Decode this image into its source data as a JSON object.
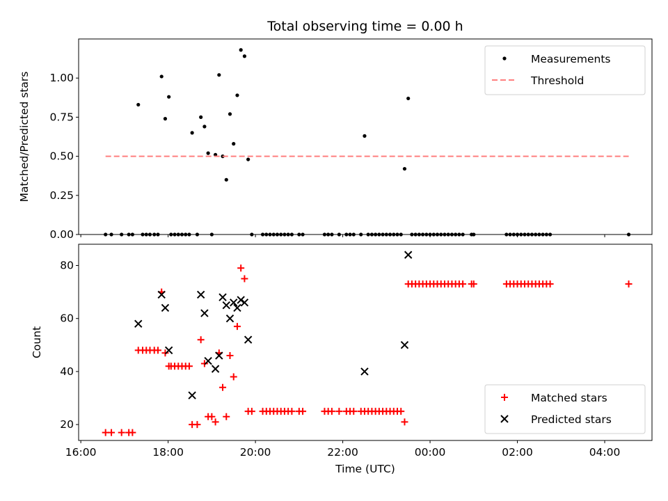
{
  "chart_data": [
    {
      "type": "scatter",
      "title": "Total observing time = 0.00 h",
      "xlabel": "",
      "ylabel": "Matched/Predicted stars",
      "x_unit": "hours (UTC, relative to 16:00 on day 0)",
      "xlim": [
        "15:57",
        "05:05"
      ],
      "ylim": [
        0,
        1.25
      ],
      "yticks": [
        "0.00",
        "0.25",
        "0.50",
        "0.75",
        "1.00"
      ],
      "xticks": [
        "16:00",
        "18:00",
        "20:00",
        "22:00",
        "00:00",
        "02:00",
        "04:00"
      ],
      "legend_position": "upper right",
      "legend": [
        "Measurements",
        "Threshold"
      ],
      "series": [
        {
          "name": "Measurements",
          "marker": "dot",
          "color": "#000000",
          "points": [
            [
              "16:34",
              0
            ],
            [
              "16:42",
              0
            ],
            [
              "16:56",
              0
            ],
            [
              "17:06",
              0
            ],
            [
              "17:11",
              0
            ],
            [
              "17:19",
              0.83
            ],
            [
              "17:25",
              0
            ],
            [
              "17:30",
              0
            ],
            [
              "17:35",
              0
            ],
            [
              "17:41",
              0
            ],
            [
              "17:46",
              0
            ],
            [
              "17:51",
              1.01
            ],
            [
              "17:56",
              0.74
            ],
            [
              "18:01",
              0.88
            ],
            [
              "18:04",
              0
            ],
            [
              "18:09",
              0
            ],
            [
              "18:14",
              0
            ],
            [
              "18:19",
              0
            ],
            [
              "18:24",
              0
            ],
            [
              "18:29",
              0
            ],
            [
              "18:33",
              0.65
            ],
            [
              "18:40",
              0
            ],
            [
              "18:45",
              0.75
            ],
            [
              "18:50",
              0.69
            ],
            [
              "18:55",
              0.52
            ],
            [
              "19:00",
              0
            ],
            [
              "19:05",
              0.51
            ],
            [
              "19:10",
              1.02
            ],
            [
              "19:15",
              0.5
            ],
            [
              "19:20",
              0.35
            ],
            [
              "19:25",
              0.77
            ],
            [
              "19:30",
              0.58
            ],
            [
              "19:35",
              0.89
            ],
            [
              "19:40",
              1.18
            ],
            [
              "19:45",
              1.14
            ],
            [
              "19:50",
              0.48
            ],
            [
              "19:55",
              0
            ],
            [
              "20:10",
              0
            ],
            [
              "20:15",
              0
            ],
            [
              "20:20",
              0
            ],
            [
              "20:25",
              0
            ],
            [
              "20:30",
              0
            ],
            [
              "20:35",
              0
            ],
            [
              "20:40",
              0
            ],
            [
              "20:45",
              0
            ],
            [
              "20:50",
              0
            ],
            [
              "21:00",
              0
            ],
            [
              "21:05",
              0
            ],
            [
              "21:35",
              0
            ],
            [
              "21:40",
              0
            ],
            [
              "21:45",
              0
            ],
            [
              "21:55",
              0
            ],
            [
              "22:05",
              0
            ],
            [
              "22:10",
              0
            ],
            [
              "22:15",
              0
            ],
            [
              "22:25",
              0
            ],
            [
              "22:30",
              0.63
            ],
            [
              "22:35",
              0
            ],
            [
              "22:40",
              0
            ],
            [
              "22:45",
              0
            ],
            [
              "22:50",
              0
            ],
            [
              "22:55",
              0
            ],
            [
              "23:00",
              0
            ],
            [
              "23:05",
              0
            ],
            [
              "23:10",
              0
            ],
            [
              "23:15",
              0
            ],
            [
              "23:20",
              0
            ],
            [
              "23:25",
              0.42
            ],
            [
              "23:30",
              0.87
            ],
            [
              "23:35",
              0
            ],
            [
              "23:40",
              0
            ],
            [
              "23:45",
              0
            ],
            [
              "23:50",
              0
            ],
            [
              "23:55",
              0
            ],
            [
              "00:00",
              0
            ],
            [
              "00:05",
              0
            ],
            [
              "00:10",
              0
            ],
            [
              "00:15",
              0
            ],
            [
              "00:20",
              0
            ],
            [
              "00:25",
              0
            ],
            [
              "00:30",
              0
            ],
            [
              "00:35",
              0
            ],
            [
              "00:40",
              0
            ],
            [
              "00:45",
              0
            ],
            [
              "00:57",
              0
            ],
            [
              "01:00",
              0
            ],
            [
              "01:45",
              0
            ],
            [
              "01:50",
              0
            ],
            [
              "01:55",
              0
            ],
            [
              "02:00",
              0
            ],
            [
              "02:05",
              0
            ],
            [
              "02:10",
              0
            ],
            [
              "02:15",
              0
            ],
            [
              "02:20",
              0
            ],
            [
              "02:25",
              0
            ],
            [
              "02:30",
              0
            ],
            [
              "02:35",
              0
            ],
            [
              "02:40",
              0
            ],
            [
              "02:45",
              0
            ],
            [
              "04:33",
              0
            ]
          ]
        },
        {
          "name": "Threshold",
          "style": "dashed",
          "color": "#ff7f7f",
          "points": [
            [
              "16:34",
              0.5
            ],
            [
              "04:33",
              0.5
            ]
          ]
        }
      ]
    },
    {
      "type": "scatter",
      "title": "",
      "xlabel": "Time (UTC)",
      "ylabel": "Count",
      "x_unit": "hours (UTC, relative to 16:00 on day 0)",
      "xlim": [
        "15:57",
        "05:05"
      ],
      "ylim": [
        14,
        88
      ],
      "yticks": [
        "20",
        "40",
        "60",
        "80"
      ],
      "xticks": [
        "16:00",
        "18:00",
        "20:00",
        "22:00",
        "00:00",
        "02:00",
        "04:00"
      ],
      "legend_position": "lower right",
      "legend": [
        "Matched stars",
        "Predicted stars"
      ],
      "series": [
        {
          "name": "Matched stars",
          "marker": "plus",
          "color": "#ff0000",
          "points": [
            [
              "16:34",
              17
            ],
            [
              "16:42",
              17
            ],
            [
              "16:56",
              17
            ],
            [
              "17:06",
              17
            ],
            [
              "17:11",
              17
            ],
            [
              "17:19",
              48
            ],
            [
              "17:25",
              48
            ],
            [
              "17:30",
              48
            ],
            [
              "17:35",
              48
            ],
            [
              "17:41",
              48
            ],
            [
              "17:46",
              48
            ],
            [
              "17:51",
              70
            ],
            [
              "17:56",
              47
            ],
            [
              "18:01",
              42
            ],
            [
              "18:04",
              42
            ],
            [
              "18:09",
              42
            ],
            [
              "18:14",
              42
            ],
            [
              "18:19",
              42
            ],
            [
              "18:24",
              42
            ],
            [
              "18:29",
              42
            ],
            [
              "18:33",
              20
            ],
            [
              "18:40",
              20
            ],
            [
              "18:45",
              52
            ],
            [
              "18:50",
              43
            ],
            [
              "18:55",
              23
            ],
            [
              "19:00",
              23
            ],
            [
              "19:05",
              21
            ],
            [
              "19:10",
              47
            ],
            [
              "19:15",
              34
            ],
            [
              "19:20",
              23
            ],
            [
              "19:25",
              46
            ],
            [
              "19:30",
              38
            ],
            [
              "19:35",
              57
            ],
            [
              "19:40",
              79
            ],
            [
              "19:45",
              75
            ],
            [
              "19:50",
              25
            ],
            [
              "19:55",
              25
            ],
            [
              "20:10",
              25
            ],
            [
              "20:15",
              25
            ],
            [
              "20:20",
              25
            ],
            [
              "20:25",
              25
            ],
            [
              "20:30",
              25
            ],
            [
              "20:35",
              25
            ],
            [
              "20:40",
              25
            ],
            [
              "20:45",
              25
            ],
            [
              "20:50",
              25
            ],
            [
              "21:00",
              25
            ],
            [
              "21:05",
              25
            ],
            [
              "21:35",
              25
            ],
            [
              "21:40",
              25
            ],
            [
              "21:45",
              25
            ],
            [
              "21:55",
              25
            ],
            [
              "22:05",
              25
            ],
            [
              "22:10",
              25
            ],
            [
              "22:15",
              25
            ],
            [
              "22:25",
              25
            ],
            [
              "22:30",
              25
            ],
            [
              "22:35",
              25
            ],
            [
              "22:40",
              25
            ],
            [
              "22:45",
              25
            ],
            [
              "22:50",
              25
            ],
            [
              "22:55",
              25
            ],
            [
              "23:00",
              25
            ],
            [
              "23:05",
              25
            ],
            [
              "23:10",
              25
            ],
            [
              "23:15",
              25
            ],
            [
              "23:20",
              25
            ],
            [
              "23:25",
              21
            ],
            [
              "23:30",
              73
            ],
            [
              "23:35",
              73
            ],
            [
              "23:40",
              73
            ],
            [
              "23:45",
              73
            ],
            [
              "23:50",
              73
            ],
            [
              "23:55",
              73
            ],
            [
              "00:00",
              73
            ],
            [
              "00:05",
              73
            ],
            [
              "00:10",
              73
            ],
            [
              "00:15",
              73
            ],
            [
              "00:20",
              73
            ],
            [
              "00:25",
              73
            ],
            [
              "00:30",
              73
            ],
            [
              "00:35",
              73
            ],
            [
              "00:40",
              73
            ],
            [
              "00:45",
              73
            ],
            [
              "00:57",
              73
            ],
            [
              "01:00",
              73
            ],
            [
              "01:45",
              73
            ],
            [
              "01:50",
              73
            ],
            [
              "01:55",
              73
            ],
            [
              "02:00",
              73
            ],
            [
              "02:05",
              73
            ],
            [
              "02:10",
              73
            ],
            [
              "02:15",
              73
            ],
            [
              "02:20",
              73
            ],
            [
              "02:25",
              73
            ],
            [
              "02:30",
              73
            ],
            [
              "02:35",
              73
            ],
            [
              "02:40",
              73
            ],
            [
              "02:45",
              73
            ],
            [
              "04:33",
              73
            ]
          ]
        },
        {
          "name": "Predicted stars",
          "marker": "x",
          "color": "#000000",
          "points": [
            [
              "17:19",
              58
            ],
            [
              "17:51",
              69
            ],
            [
              "17:56",
              64
            ],
            [
              "18:01",
              48
            ],
            [
              "18:33",
              31
            ],
            [
              "18:45",
              69
            ],
            [
              "18:50",
              62
            ],
            [
              "18:55",
              44
            ],
            [
              "19:05",
              41
            ],
            [
              "19:10",
              46
            ],
            [
              "19:15",
              68
            ],
            [
              "19:20",
              65
            ],
            [
              "19:25",
              60
            ],
            [
              "19:30",
              66
            ],
            [
              "19:35",
              64
            ],
            [
              "19:40",
              67
            ],
            [
              "19:45",
              66
            ],
            [
              "19:50",
              52
            ],
            [
              "22:30",
              40
            ],
            [
              "23:25",
              50
            ],
            [
              "23:30",
              84
            ]
          ]
        }
      ]
    }
  ]
}
